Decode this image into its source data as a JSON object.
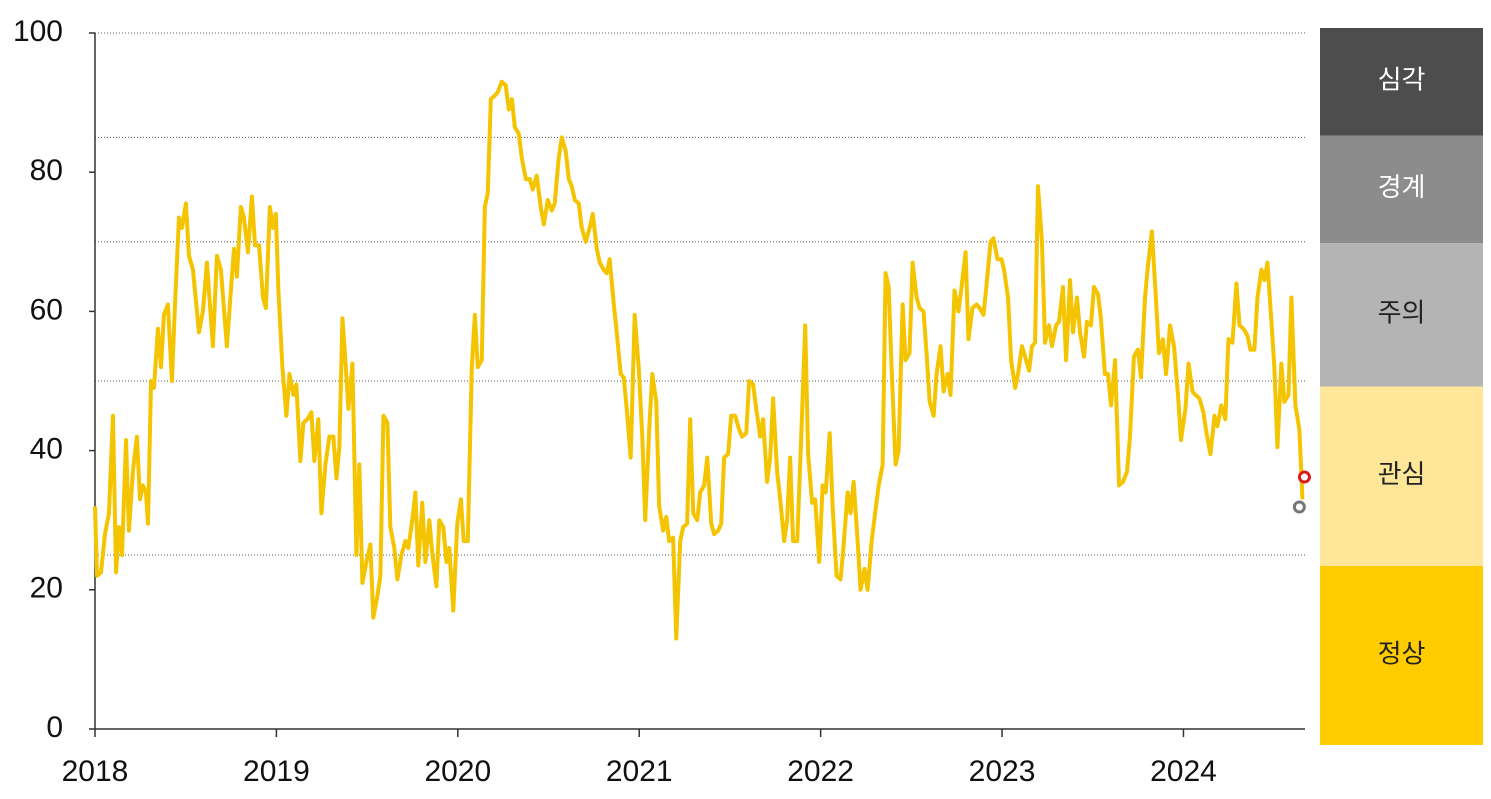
{
  "chart_data": {
    "type": "line",
    "color": "#f5c400",
    "x": [
      2018,
      2018.011,
      2018.033,
      2018.055,
      2018.077,
      2018.099,
      2018.116,
      2018.132,
      2018.149,
      2018.171,
      2018.187,
      2018.209,
      2018.231,
      2018.248,
      2018.264,
      2018.281,
      2018.292,
      2018.309,
      2018.325,
      2018.347,
      2018.364,
      2018.38,
      2018.402,
      2018.424,
      2018.441,
      2018.463,
      2018.479,
      2018.501,
      2018.518,
      2018.54,
      2018.573,
      2018.595,
      2018.617,
      2018.65,
      2018.672,
      2018.694,
      2018.727,
      2018.749,
      2018.766,
      2018.782,
      2018.804,
      2018.821,
      2018.843,
      2018.865,
      2018.882,
      2018.904,
      2018.926,
      2018.942,
      2018.964,
      2018.981,
      2018.997,
      2019.011,
      2019.033,
      2019.055,
      2019.072,
      2019.094,
      2019.11,
      2019.132,
      2019.149,
      2019.171,
      2019.193,
      2019.209,
      2019.231,
      2019.248,
      2019.27,
      2019.292,
      2019.314,
      2019.331,
      2019.347,
      2019.364,
      2019.38,
      2019.397,
      2019.419,
      2019.441,
      2019.457,
      2019.474,
      2019.496,
      2019.518,
      2019.534,
      2019.556,
      2019.573,
      2019.59,
      2019.612,
      2019.628,
      2019.65,
      2019.667,
      2019.689,
      2019.711,
      2019.727,
      2019.749,
      2019.766,
      2019.782,
      2019.804,
      2019.821,
      2019.843,
      2019.86,
      2019.882,
      2019.898,
      2019.92,
      2019.937,
      2019.953,
      2019.975,
      2019.997,
      2020.017,
      2020.033,
      2020.055,
      2020.077,
      2020.094,
      2020.11,
      2020.132,
      2020.149,
      2020.165,
      2020.182,
      2020.204,
      2020.22,
      2020.242,
      2020.264,
      2020.281,
      2020.298,
      2020.314,
      2020.336,
      2020.353,
      2020.375,
      2020.397,
      2020.413,
      2020.435,
      2020.457,
      2020.474,
      2020.496,
      2020.518,
      2020.534,
      2020.556,
      2020.573,
      2020.595,
      2020.612,
      2020.628,
      2020.645,
      2020.667,
      2020.683,
      2020.705,
      2020.727,
      2020.744,
      2020.766,
      2020.782,
      2020.804,
      2020.821,
      2020.837,
      2020.86,
      2020.876,
      2020.898,
      2020.915,
      2020.931,
      2020.953,
      2020.975,
      2020.997,
      2021.017,
      2021.033,
      2021.055,
      2021.072,
      2021.094,
      2021.11,
      2021.132,
      2021.149,
      2021.165,
      2021.187,
      2021.204,
      2021.226,
      2021.242,
      2021.264,
      2021.281,
      2021.298,
      2021.32,
      2021.336,
      2021.358,
      2021.375,
      2021.397,
      2021.413,
      2021.435,
      2021.452,
      2021.468,
      2021.49,
      2021.507,
      2021.529,
      2021.551,
      2021.567,
      2021.59,
      2021.606,
      2021.628,
      2021.645,
      2021.667,
      2021.683,
      2021.705,
      2021.722,
      2021.738,
      2021.76,
      2021.777,
      2021.799,
      2021.815,
      2021.832,
      2021.848,
      2021.871,
      2021.893,
      2021.915,
      2021.931,
      2021.953,
      2021.97,
      2021.992,
      2022.011,
      2022.028,
      2022.05,
      2022.066,
      2022.088,
      2022.11,
      2022.127,
      2022.149,
      2022.165,
      2022.182,
      2022.204,
      2022.22,
      2022.242,
      2022.259,
      2022.281,
      2022.303,
      2022.32,
      2022.342,
      2022.358,
      2022.375,
      2022.391,
      2022.413,
      2022.43,
      2022.452,
      2022.468,
      2022.49,
      2022.507,
      2022.529,
      2022.545,
      2022.567,
      2022.584,
      2022.601,
      2022.623,
      2022.639,
      2022.661,
      2022.678,
      2022.7,
      2022.716,
      2022.738,
      2022.76,
      2022.777,
      2022.799,
      2022.815,
      2022.837,
      2022.86,
      2022.876,
      2022.898,
      2022.915,
      2022.937,
      2022.953,
      2022.975,
      2022.997,
      2023.011,
      2023.033,
      2023.05,
      2023.072,
      2023.088,
      2023.11,
      2023.127,
      2023.149,
      2023.165,
      2023.182,
      2023.198,
      2023.22,
      2023.237,
      2023.259,
      2023.275,
      2023.298,
      2023.314,
      2023.336,
      2023.353,
      2023.375,
      2023.391,
      2023.413,
      2023.43,
      2023.452,
      2023.468,
      2023.49,
      2023.507,
      2023.529,
      2023.545,
      2023.567,
      2023.584,
      2023.601,
      2023.623,
      2023.645,
      2023.667,
      2023.689,
      2023.705,
      2023.727,
      2023.749,
      2023.766,
      2023.788,
      2023.804,
      2023.826,
      2023.848,
      2023.865,
      2023.887,
      2023.904,
      2023.926,
      2023.948,
      2023.97,
      2023.986,
      2024.011,
      2024.028,
      2024.05,
      2024.066,
      2024.088,
      2024.11,
      2024.127,
      2024.149,
      2024.171,
      2024.187,
      2024.209,
      2024.231,
      2024.248,
      2024.27,
      2024.292,
      2024.309,
      2024.331,
      2024.353,
      2024.369,
      2024.391,
      2024.408,
      2024.43,
      2024.446,
      2024.463,
      2024.485,
      2024.501,
      2024.518,
      2024.54,
      2024.556,
      2024.579,
      2024.595,
      2024.617,
      2024.639,
      2024.656
    ],
    "values": [
      32,
      22,
      22.5,
      28,
      31,
      45,
      22.5,
      29,
      25,
      41.5,
      28.5,
      37,
      42,
      33,
      35,
      34,
      29.5,
      50,
      49,
      57.5,
      52,
      59.5,
      61,
      50,
      61,
      73.5,
      72,
      75.5,
      68,
      66,
      57,
      60,
      67,
      55,
      68,
      66,
      55,
      63,
      69,
      65,
      75,
      73.5,
      68.5,
      76.5,
      69.5,
      69.5,
      62,
      60.5,
      75,
      72,
      74,
      63,
      52,
      45,
      51,
      48,
      49.5,
      38.5,
      44,
      44.5,
      45.5,
      38.5,
      44.5,
      31,
      38,
      42,
      42,
      36,
      40.5,
      59,
      53,
      46,
      52.5,
      25,
      38,
      21,
      24,
      26.5,
      16,
      19,
      22,
      45,
      44,
      29,
      26,
      21.5,
      25,
      27,
      26,
      30,
      34,
      23.5,
      32.5,
      24,
      30,
      25,
      20.5,
      30,
      29,
      24,
      26,
      17,
      29.5,
      33,
      27,
      27,
      52,
      59.5,
      52,
      53,
      75,
      77,
      90.5,
      91,
      91.5,
      93,
      92.5,
      89,
      90.5,
      86.5,
      85.5,
      82,
      79,
      79,
      77.5,
      79.5,
      75,
      72.5,
      76,
      74.5,
      75.5,
      82,
      85,
      83,
      79,
      78,
      76,
      75.5,
      72,
      70,
      72,
      74,
      69,
      67,
      66,
      65.5,
      67.5,
      61,
      57,
      51,
      50.5,
      46,
      39,
      59.5,
      52,
      42,
      30,
      43,
      51,
      47,
      32,
      28.5,
      30.5,
      27,
      27.5,
      13,
      27,
      29,
      29.5,
      44.5,
      31,
      30,
      34,
      35,
      39,
      29.5,
      28,
      28.5,
      29.5,
      39,
      39.5,
      45,
      45,
      43,
      42,
      42.5,
      50,
      49.5,
      46,
      42,
      44.5,
      35.5,
      39,
      47.5,
      37,
      33,
      27,
      30,
      39,
      27,
      27,
      42,
      58,
      39.5,
      32.5,
      33,
      24,
      35,
      34,
      42.5,
      32,
      22,
      21.5,
      26.5,
      34,
      31,
      35.5,
      27,
      20,
      23,
      20,
      27,
      31.5,
      35,
      38,
      65.5,
      63.5,
      52,
      38,
      40,
      61,
      53,
      54,
      67,
      62,
      60.5,
      60,
      54,
      47,
      45,
      51,
      55,
      48.5,
      51,
      48,
      63,
      60,
      63.5,
      68.5,
      56,
      60.5,
      61,
      60.5,
      59.5,
      64,
      70,
      70.5,
      67.5,
      67.5,
      66,
      62,
      53,
      49,
      51,
      55,
      53.5,
      51.5,
      55,
      55.5,
      78,
      70,
      55.5,
      58,
      55,
      58,
      58.5,
      63.5,
      53,
      64.5,
      57,
      62,
      57,
      53.5,
      58.5,
      58,
      63.5,
      62.5,
      59,
      51,
      51,
      46.5,
      53,
      35,
      35.5,
      37,
      42,
      53.5,
      54.5,
      50.5,
      62,
      66.5,
      71.5,
      62,
      54,
      56,
      51,
      58,
      55,
      48,
      41.5,
      46,
      52.5,
      48.5,
      48,
      47.5,
      45.5,
      42.5,
      39.5,
      45,
      43.5,
      46.5,
      44.5,
      56,
      55.5,
      64,
      58,
      57.5,
      56.5,
      54.5,
      54.5,
      62,
      66,
      64.5,
      67,
      58.5,
      52,
      40.5,
      52.5,
      47,
      48,
      62,
      46.5,
      43,
      33
    ],
    "markers": [
      {
        "x": 2024.639,
        "y": 31.9,
        "color": "#777777"
      },
      {
        "x": 2024.667,
        "y": 36.2,
        "color": "#d91e18"
      }
    ],
    "xlim": [
      2018,
      2024.67
    ],
    "xticks": [
      2018,
      2019,
      2020,
      2021,
      2022,
      2023,
      2024
    ],
    "ylim": [
      0,
      100
    ],
    "yticks": [
      0,
      20,
      40,
      60,
      80,
      100
    ],
    "bands": [
      {
        "label": "정상",
        "from": 0,
        "to": 25,
        "color": "#ffcc00",
        "text_color": "#222222"
      },
      {
        "label": "관심",
        "from": 25,
        "to": 50,
        "color": "#ffe699",
        "text_color": "#222222"
      },
      {
        "label": "주의",
        "from": 50,
        "to": 70,
        "color": "#b4b4b4",
        "text_color": "#222222"
      },
      {
        "label": "경계",
        "from": 70,
        "to": 85,
        "color": "#8c8c8c",
        "text_color": "#ffffff"
      },
      {
        "label": "심각",
        "from": 85,
        "to": 100,
        "color": "#4d4d4d",
        "text_color": "#ffffff"
      }
    ]
  }
}
